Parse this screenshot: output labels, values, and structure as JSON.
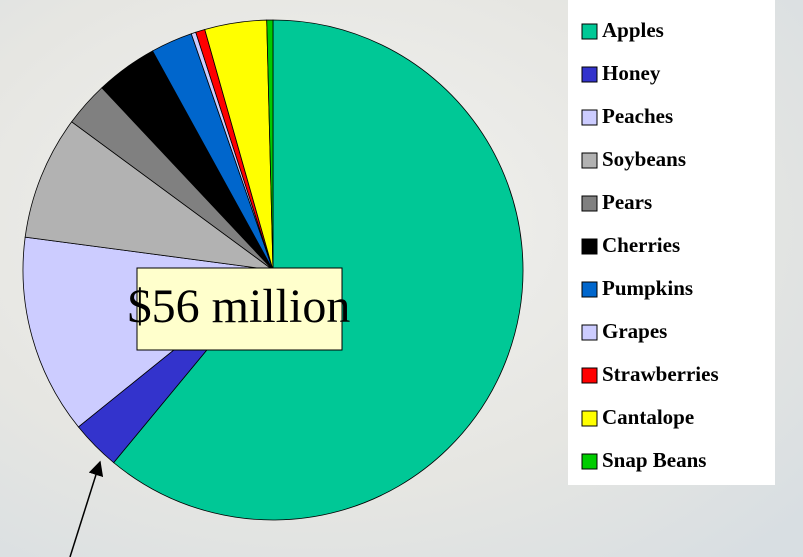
{
  "chart_data": {
    "type": "pie",
    "annotation": "$56 million",
    "legend": "right",
    "categories": [
      "Apples",
      "Honey",
      "Peaches",
      "Soybeans",
      "Pears",
      "Cherries",
      "Pumpkins",
      "Grapes",
      "Strawberries",
      "Cantalope",
      "Snap Beans"
    ],
    "values": [
      61,
      3.2,
      12.9,
      8,
      2.9,
      4,
      2.7,
      0.3,
      0.6,
      4,
      0.4
    ],
    "colors": [
      "#00c896",
      "#3333cc",
      "#ccccff",
      "#b2b2b2",
      "#808080",
      "#000000",
      "#0066cc",
      "#ccccff",
      "#ff0000",
      "#ffff00",
      "#00cc00"
    ]
  }
}
